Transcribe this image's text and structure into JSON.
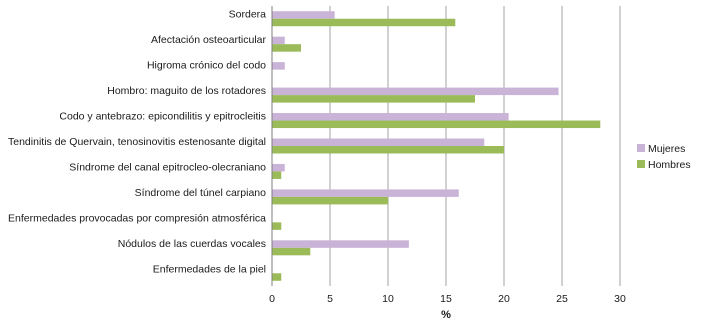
{
  "chart_data": {
    "type": "bar",
    "orientation": "horizontal",
    "categories": [
      "Sordera",
      "Afectación osteoarticular",
      "Higroma crónico del codo",
      "Hombro: maguito de los rotadores",
      "Codo y antebrazo: epicondilitis y epitrocleitis",
      "Tendinitis de Quervain, tenosinovitis estenosante digital",
      "Síndrome del canal epitrocleo-olecraniano",
      "Síndrome del túnel carpiano",
      "Enfermedades provocadas por compresión atmosférica",
      "Nódulos de las cuerdas vocales",
      "Enfermedades de la piel"
    ],
    "series": [
      {
        "name": "Mujeres",
        "color": "#c9b3d6",
        "values": [
          5.4,
          1.1,
          1.1,
          24.7,
          20.4,
          18.3,
          1.1,
          16.1,
          0,
          11.8,
          0
        ]
      },
      {
        "name": "Hombres",
        "color": "#9bbb59",
        "values": [
          15.8,
          2.5,
          0,
          17.5,
          28.3,
          20.0,
          0.8,
          10.0,
          0.8,
          3.3,
          0.8
        ]
      }
    ],
    "xlabel": "%",
    "xlim": [
      0,
      30
    ],
    "xticks": [
      0,
      5,
      10,
      15,
      20,
      25,
      30
    ],
    "grid": true,
    "legend": "right"
  }
}
